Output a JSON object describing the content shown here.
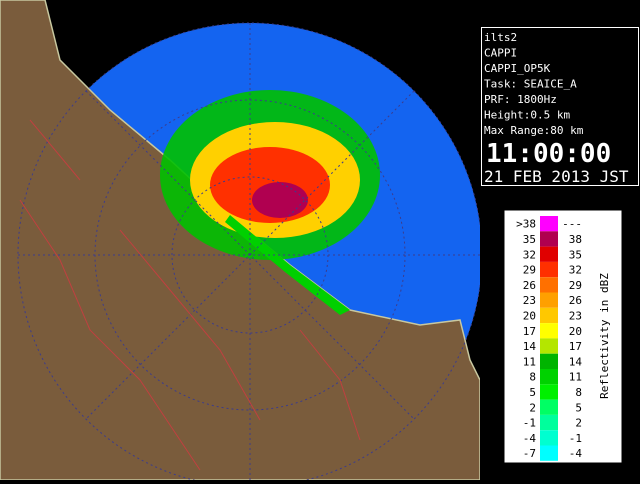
{
  "info": {
    "lines": [
      "ilts2",
      "CAPPI",
      "CAPPI_OP5K",
      "Task: SEAICE_A",
      "PRF: 1800Hz",
      "Height:0.5 km",
      "Max Range:80 km"
    ],
    "time": "11:00:00",
    "date": "21 FEB 2013 JST"
  },
  "legend": {
    "title": "Reflectivity in dBZ",
    "rows": [
      {
        "low": ">38",
        "high": "---",
        "color": "#ff00ff"
      },
      {
        "low": "35",
        "high": "38",
        "color": "#b00050"
      },
      {
        "low": "32",
        "high": "35",
        "color": "#e00000"
      },
      {
        "low": "29",
        "high": "32",
        "color": "#ff3000"
      },
      {
        "low": "26",
        "high": "29",
        "color": "#ff7000"
      },
      {
        "low": "23",
        "high": "26",
        "color": "#ffa000"
      },
      {
        "low": "20",
        "high": "23",
        "color": "#ffc800"
      },
      {
        "low": "17",
        "high": "20",
        "color": "#ffff00"
      },
      {
        "low": "14",
        "high": "17",
        "color": "#b4e600"
      },
      {
        "low": "11",
        "high": "14",
        "color": "#00b400"
      },
      {
        "low": "8",
        "high": "11",
        "color": "#00d200"
      },
      {
        "low": "5",
        "high": "8",
        "color": "#00f000"
      },
      {
        "low": "2",
        "high": "5",
        "color": "#00ff64"
      },
      {
        "low": "-1",
        "high": "2",
        "color": "#00ff9c"
      },
      {
        "low": "-4",
        "high": "-1",
        "color": "#00ffd0"
      },
      {
        "low": "-7",
        "high": "-4",
        "color": "#00ffff"
      }
    ]
  }
}
